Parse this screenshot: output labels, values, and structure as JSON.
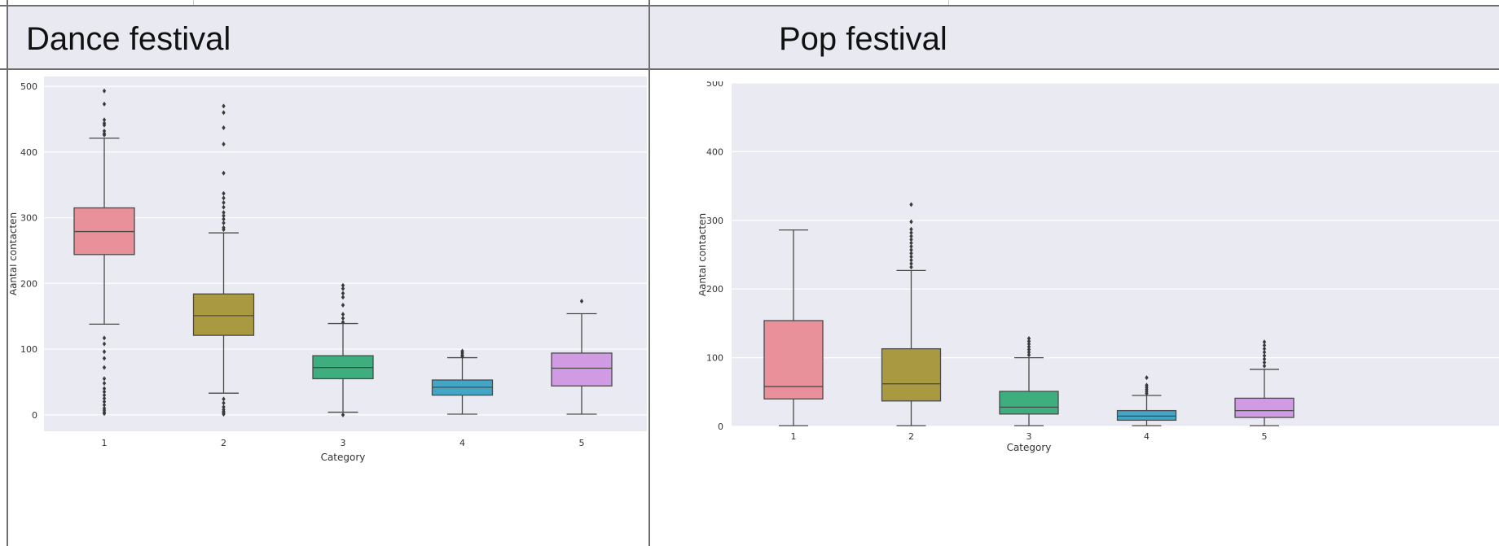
{
  "panels": [
    {
      "title": "Dance festival"
    },
    {
      "title": "Pop festival"
    }
  ],
  "chart_data": [
    {
      "type": "box",
      "title": "Dance festival",
      "xlabel": "Category",
      "ylabel": "Aantal contacten",
      "categories": [
        "1",
        "2",
        "3",
        "4",
        "5"
      ],
      "yticks": [
        "0",
        "100",
        "200",
        "300",
        "400",
        "500"
      ],
      "ylim": [
        -25,
        515
      ],
      "grid": true,
      "background": "#eaeaf2",
      "colors": [
        "#e8919b",
        "#a99a41",
        "#3fae7f",
        "#43a6c6",
        "#d19be4"
      ],
      "boxes": [
        {
          "category": "1",
          "q1": 244,
          "median": 279,
          "q3": 315,
          "whisker_low": 138,
          "whisker_high": 421,
          "outliers": [
            493,
            473,
            449,
            444,
            441,
            432,
            428,
            426,
            117,
            108,
            96,
            86,
            72,
            55,
            48,
            40,
            35,
            30,
            25,
            20,
            15,
            10,
            7,
            4,
            2
          ]
        },
        {
          "category": "2",
          "q1": 121,
          "median": 151,
          "q3": 184,
          "whisker_low": 33,
          "whisker_high": 277,
          "outliers": [
            470,
            460,
            437,
            412,
            368,
            337,
            330,
            323,
            316,
            308,
            303,
            298,
            292,
            285,
            282,
            24,
            18,
            12,
            8,
            5,
            3,
            1
          ]
        },
        {
          "category": "3",
          "q1": 55,
          "median": 72,
          "q3": 90,
          "whisker_low": 4,
          "whisker_high": 139,
          "outliers": [
            197,
            192,
            185,
            179,
            167,
            153,
            147,
            141,
            0
          ]
        },
        {
          "category": "4",
          "q1": 30,
          "median": 42,
          "q3": 53,
          "whisker_low": 1,
          "whisker_high": 87,
          "outliers": [
            97,
            94,
            91,
            89
          ]
        },
        {
          "category": "5",
          "q1": 44,
          "median": 71,
          "q3": 94,
          "whisker_low": 1,
          "whisker_high": 154,
          "outliers": [
            173
          ]
        }
      ]
    },
    {
      "type": "box",
      "title": "Pop festival",
      "xlabel": "Category",
      "ylabel": "Aantal contacten",
      "categories": [
        "1",
        "2",
        "3",
        "4",
        "5"
      ],
      "yticks": [
        "0",
        "100",
        "200",
        "300",
        "400",
        "500"
      ],
      "ylim": [
        0,
        500
      ],
      "grid": true,
      "background": "#eaeaf2",
      "colors": [
        "#e8919b",
        "#a99a41",
        "#3fae7f",
        "#43a6c6",
        "#d19be4"
      ],
      "boxes": [
        {
          "category": "1",
          "q1": 40,
          "median": 58,
          "q3": 154,
          "whisker_low": 1,
          "whisker_high": 286,
          "outliers": []
        },
        {
          "category": "2",
          "q1": 37,
          "median": 62,
          "q3": 113,
          "whisker_low": 1,
          "whisker_high": 227,
          "outliers": [
            323,
            298,
            287,
            282,
            277,
            272,
            267,
            262,
            257,
            252,
            247,
            242,
            237,
            232
          ]
        },
        {
          "category": "3",
          "q1": 18,
          "median": 28,
          "q3": 51,
          "whisker_low": 1,
          "whisker_high": 100,
          "outliers": [
            128,
            124,
            120,
            116,
            112,
            108,
            104
          ]
        },
        {
          "category": "4",
          "q1": 9,
          "median": 15,
          "q3": 23,
          "whisker_low": 1,
          "whisker_high": 45,
          "outliers": [
            71,
            60,
            57,
            54,
            51,
            48
          ]
        },
        {
          "category": "5",
          "q1": 13,
          "median": 23,
          "q3": 41,
          "whisker_low": 1,
          "whisker_high": 83,
          "outliers": [
            123,
            118,
            113,
            108,
            103,
            98,
            93,
            88
          ]
        }
      ]
    }
  ]
}
